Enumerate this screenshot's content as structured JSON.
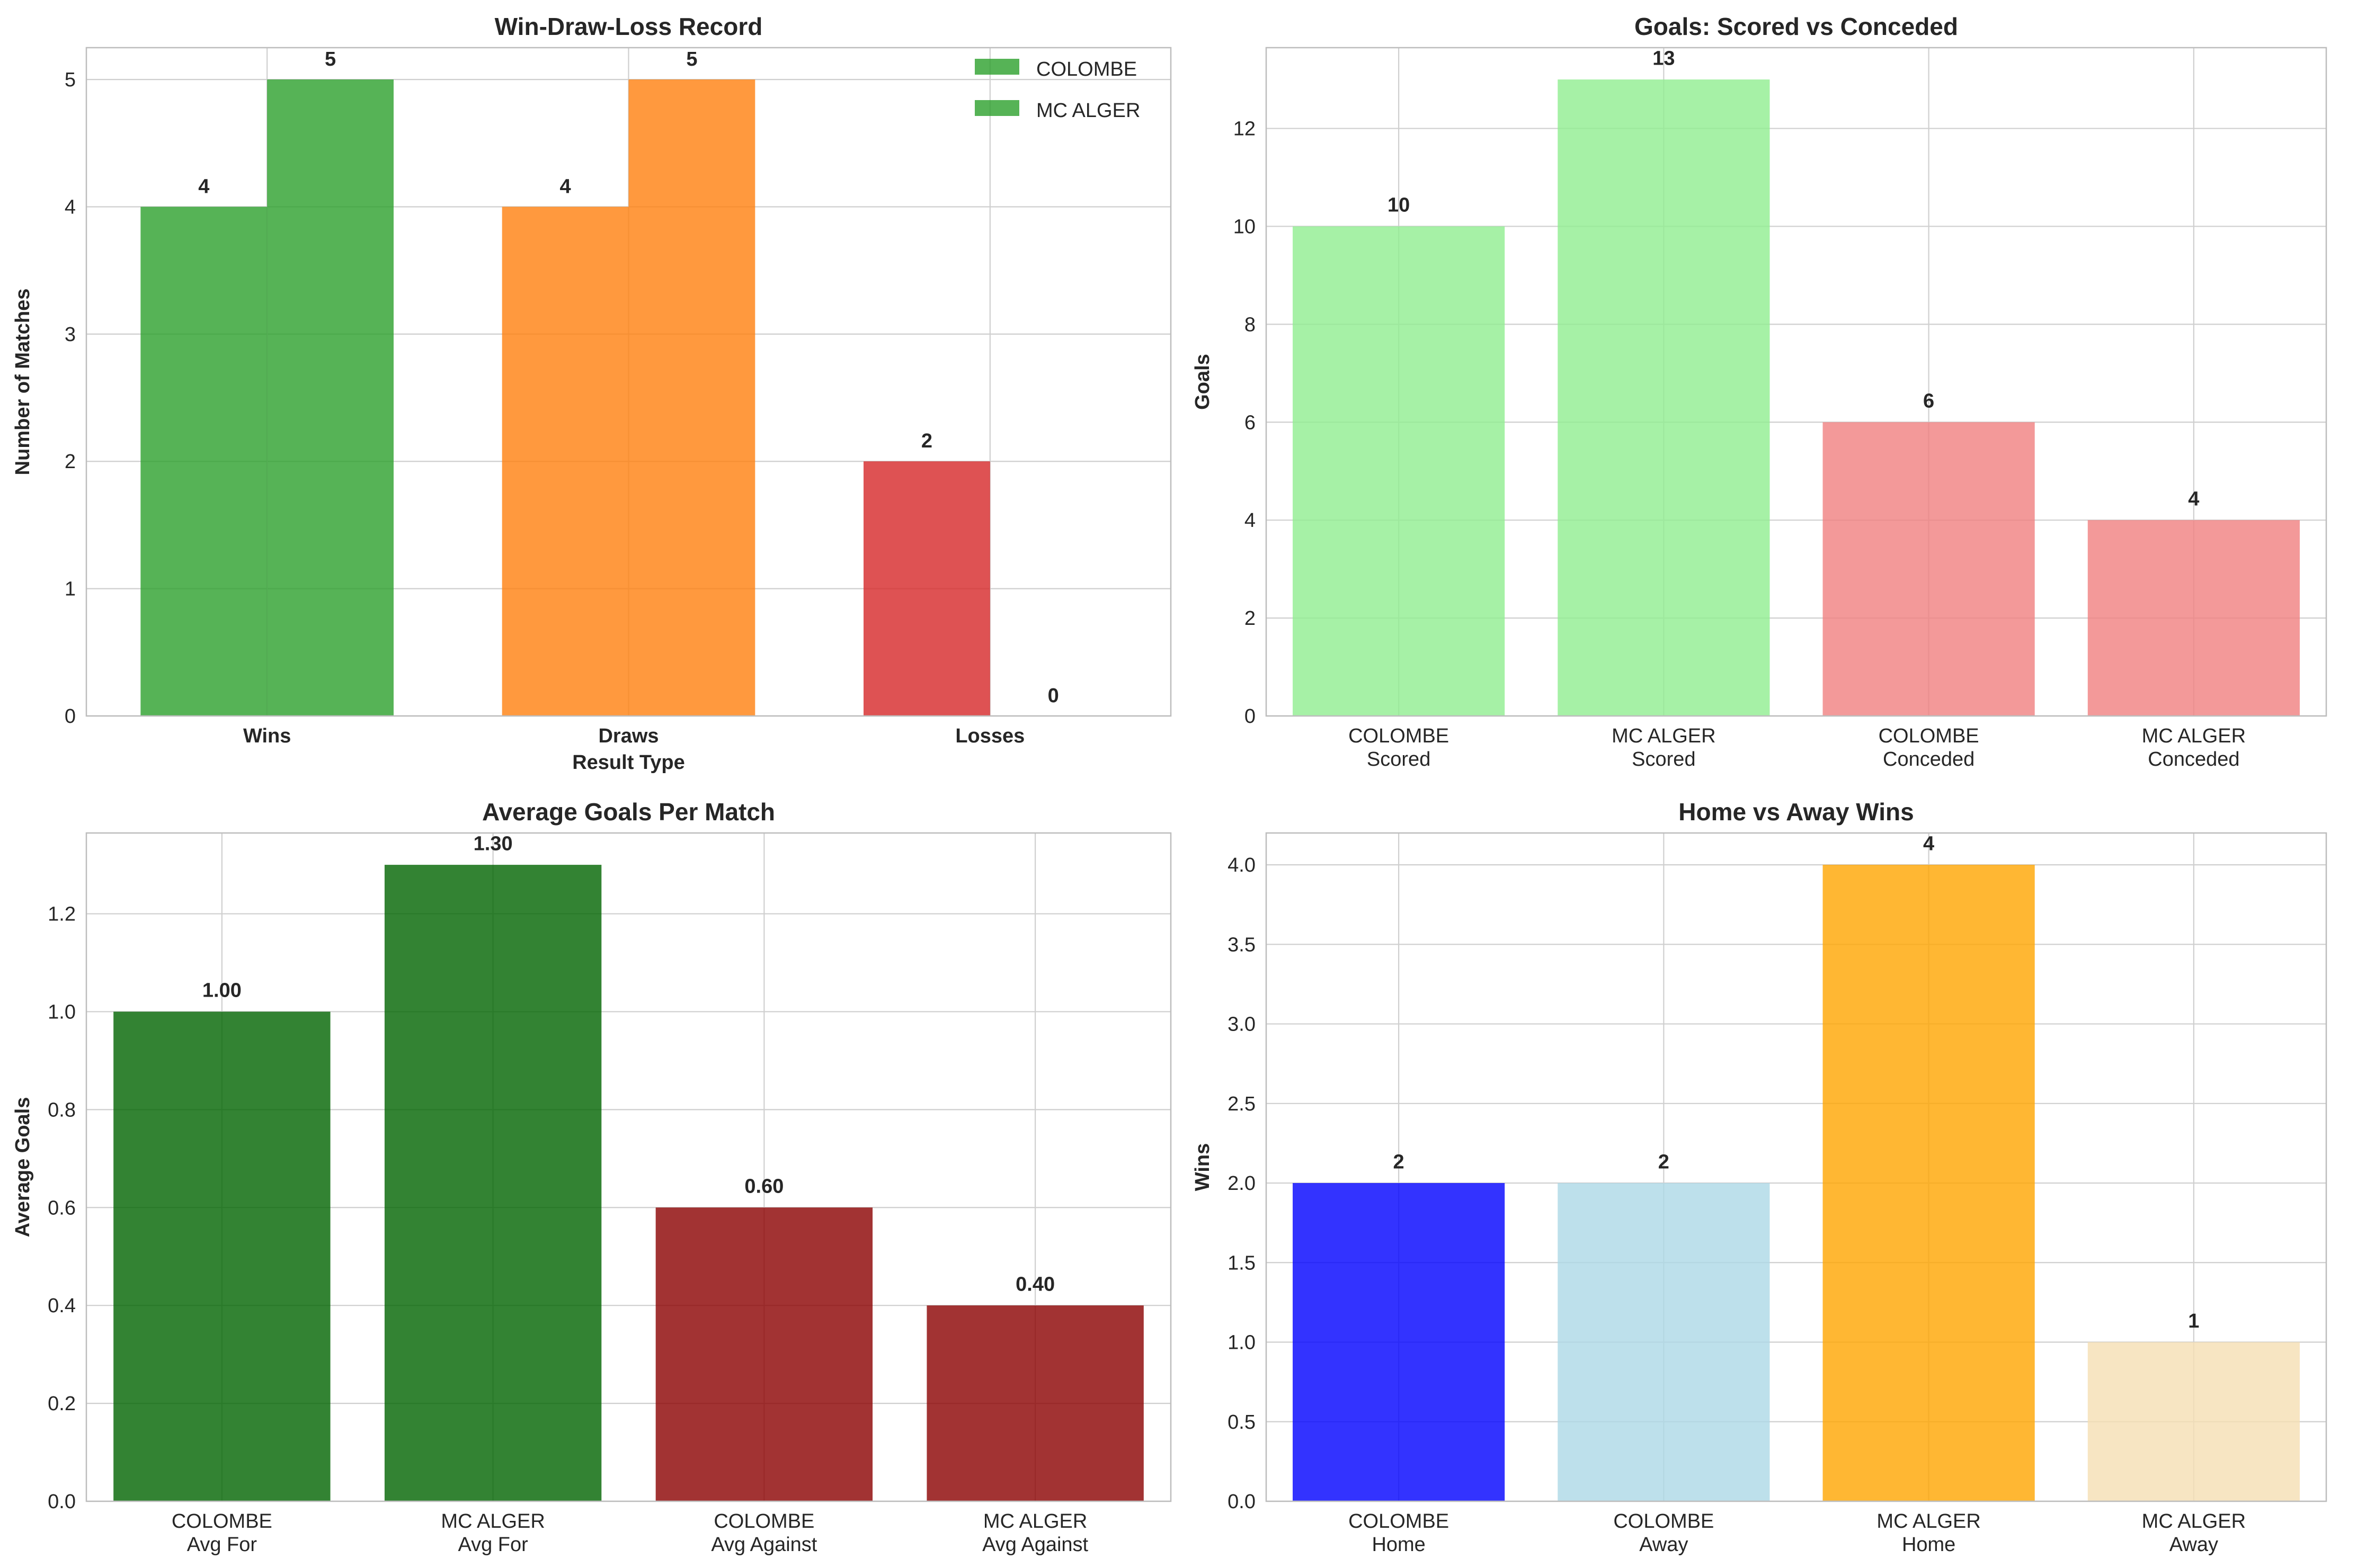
{
  "chart_data": [
    {
      "id": "wdl",
      "type": "bar",
      "title": "Win-Draw-Loss Record",
      "xlabel": "Result Type",
      "ylabel": "Number of Matches",
      "ylim": [
        0,
        5.25
      ],
      "yticks": [
        "0",
        "1",
        "2",
        "3",
        "4",
        "5"
      ],
      "categories": [
        "Wins",
        "Draws",
        "Losses"
      ],
      "grouped": true,
      "bold_xticks": true,
      "series": [
        {
          "name": "COLOMBE",
          "values": [
            4,
            4,
            2
          ],
          "colors": [
            "#2ca02c",
            "#ff7f0e",
            "#d62728"
          ]
        },
        {
          "name": "MC ALGER",
          "values": [
            5,
            5,
            0
          ],
          "colors": [
            "#2ca02c",
            "#ff7f0e",
            "#d62728"
          ]
        }
      ],
      "value_labels": [
        "4",
        "4",
        "2",
        "5",
        "5",
        "0"
      ],
      "legend": {
        "placement": "top-right",
        "entries": [
          "COLOMBE",
          "MC ALGER"
        ],
        "color": "#2ca02c"
      },
      "grid": true
    },
    {
      "id": "goals",
      "type": "bar",
      "title": "Goals: Scored vs Conceded",
      "xlabel": "",
      "ylabel": "Goals",
      "ylim": [
        0,
        13.65
      ],
      "yticks": [
        "0",
        "2",
        "4",
        "6",
        "8",
        "10",
        "12"
      ],
      "categories": [
        [
          "COLOMBE",
          "Scored"
        ],
        [
          "MC ALGER",
          "Scored"
        ],
        [
          "COLOMBE",
          "Conceded"
        ],
        [
          "MC ALGER",
          "Conceded"
        ]
      ],
      "values": [
        10,
        13,
        6,
        4
      ],
      "value_labels": [
        "10",
        "13",
        "6",
        "4"
      ],
      "colors": [
        "#90ee90",
        "#90ee90",
        "#f08080",
        "#f08080"
      ],
      "grid": true
    },
    {
      "id": "avg",
      "type": "bar",
      "title": "Average Goals Per Match",
      "xlabel": "",
      "ylabel": "Average Goals",
      "ylim": [
        0,
        1.365
      ],
      "yticks": [
        "0.0",
        "0.2",
        "0.4",
        "0.6",
        "0.8",
        "1.0",
        "1.2"
      ],
      "categories": [
        [
          "COLOMBE",
          "Avg For"
        ],
        [
          "MC ALGER",
          "Avg For"
        ],
        [
          "COLOMBE",
          "Avg Against"
        ],
        [
          "MC ALGER",
          "Avg Against"
        ]
      ],
      "values": [
        1.0,
        1.3,
        0.6,
        0.4
      ],
      "value_labels": [
        "1.00",
        "1.30",
        "0.60",
        "0.40"
      ],
      "colors": [
        "#006400",
        "#006400",
        "#8b0000",
        "#8b0000"
      ],
      "grid": true
    },
    {
      "id": "homeaway",
      "type": "bar",
      "title": "Home vs Away Wins",
      "xlabel": "",
      "ylabel": "Wins",
      "ylim": [
        0,
        4.2
      ],
      "yticks": [
        "0.0",
        "0.5",
        "1.0",
        "1.5",
        "2.0",
        "2.5",
        "3.0",
        "3.5",
        "4.0"
      ],
      "categories": [
        [
          "COLOMBE",
          "Home"
        ],
        [
          "COLOMBE",
          "Away"
        ],
        [
          "MC ALGER",
          "Home"
        ],
        [
          "MC ALGER",
          "Away"
        ]
      ],
      "values": [
        2,
        2,
        4,
        1
      ],
      "value_labels": [
        "2",
        "2",
        "4",
        "1"
      ],
      "colors": [
        "#0000ff",
        "#add8e6",
        "#ffa500",
        "#f5deb3"
      ],
      "grid": true
    }
  ]
}
